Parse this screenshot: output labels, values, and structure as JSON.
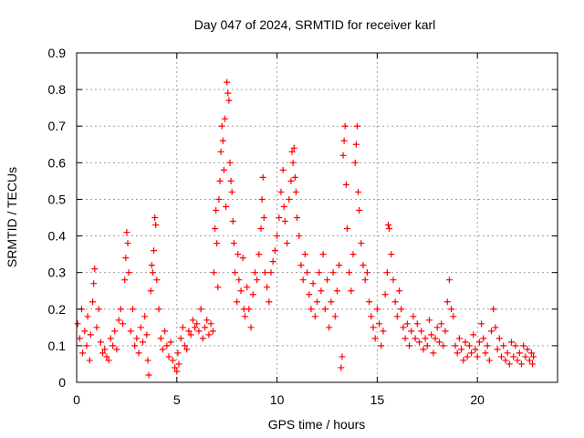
{
  "chart_data": {
    "type": "scatter",
    "title": "Day 047 of 2024, SRMTID for receiver karl",
    "xlabel": "GPS time / hours",
    "ylabel": "SRMTID / TECUs",
    "xlim": [
      0,
      24
    ],
    "ylim": [
      0,
      0.9
    ],
    "xticks": [
      0,
      5,
      10,
      15,
      20
    ],
    "xtick_labels": [
      "0",
      "5",
      "10",
      "15",
      "20"
    ],
    "yticks": [
      0,
      0.1,
      0.2,
      0.3,
      0.4,
      0.5,
      0.6,
      0.7,
      0.8,
      0.9
    ],
    "ytick_labels": [
      "0",
      "0.1",
      "0.2",
      "0.3",
      "0.4",
      "0.5",
      "0.6",
      "0.7",
      "0.8",
      "0.9"
    ],
    "grid": true,
    "marker": "+",
    "color": "#ff0000",
    "series": [
      {
        "name": "SRMTID",
        "points": [
          [
            0.05,
            0.16
          ],
          [
            0.15,
            0.12
          ],
          [
            0.25,
            0.2
          ],
          [
            0.3,
            0.08
          ],
          [
            0.4,
            0.14
          ],
          [
            0.5,
            0.1
          ],
          [
            0.55,
            0.18
          ],
          [
            0.65,
            0.06
          ],
          [
            0.7,
            0.13
          ],
          [
            0.8,
            0.22
          ],
          [
            0.85,
            0.27
          ],
          [
            0.9,
            0.31
          ],
          [
            1.0,
            0.15
          ],
          [
            1.1,
            0.2
          ],
          [
            1.2,
            0.11
          ],
          [
            1.3,
            0.08
          ],
          [
            1.4,
            0.09
          ],
          [
            1.5,
            0.07
          ],
          [
            1.6,
            0.06
          ],
          [
            1.7,
            0.12
          ],
          [
            1.8,
            0.1
          ],
          [
            1.9,
            0.14
          ],
          [
            2.0,
            0.09
          ],
          [
            2.1,
            0.17
          ],
          [
            2.2,
            0.2
          ],
          [
            2.3,
            0.16
          ],
          [
            2.4,
            0.28
          ],
          [
            2.45,
            0.34
          ],
          [
            2.5,
            0.41
          ],
          [
            2.55,
            0.38
          ],
          [
            2.6,
            0.3
          ],
          [
            2.7,
            0.14
          ],
          [
            2.8,
            0.2
          ],
          [
            2.9,
            0.1
          ],
          [
            3.0,
            0.12
          ],
          [
            3.1,
            0.08
          ],
          [
            3.2,
            0.15
          ],
          [
            3.3,
            0.11
          ],
          [
            3.4,
            0.18
          ],
          [
            3.5,
            0.13
          ],
          [
            3.55,
            0.06
          ],
          [
            3.6,
            0.02
          ],
          [
            3.7,
            0.25
          ],
          [
            3.75,
            0.32
          ],
          [
            3.8,
            0.3
          ],
          [
            3.85,
            0.36
          ],
          [
            3.9,
            0.45
          ],
          [
            3.95,
            0.43
          ],
          [
            4.0,
            0.28
          ],
          [
            4.1,
            0.2
          ],
          [
            4.2,
            0.12
          ],
          [
            4.3,
            0.09
          ],
          [
            4.4,
            0.14
          ],
          [
            4.5,
            0.1
          ],
          [
            4.6,
            0.07
          ],
          [
            4.7,
            0.11
          ],
          [
            4.8,
            0.06
          ],
          [
            4.9,
            0.04
          ],
          [
            5.0,
            0.03
          ],
          [
            5.05,
            0.08
          ],
          [
            5.1,
            0.05
          ],
          [
            5.2,
            0.12
          ],
          [
            5.3,
            0.15
          ],
          [
            5.4,
            0.1
          ],
          [
            5.5,
            0.09
          ],
          [
            5.6,
            0.14
          ],
          [
            5.7,
            0.13
          ],
          [
            5.8,
            0.17
          ],
          [
            5.9,
            0.15
          ],
          [
            6.0,
            0.16
          ],
          [
            6.1,
            0.14
          ],
          [
            6.2,
            0.2
          ],
          [
            6.3,
            0.12
          ],
          [
            6.4,
            0.15
          ],
          [
            6.5,
            0.17
          ],
          [
            6.6,
            0.13
          ],
          [
            6.7,
            0.16
          ],
          [
            6.8,
            0.14
          ],
          [
            6.85,
            0.3
          ],
          [
            6.9,
            0.42
          ],
          [
            6.95,
            0.47
          ],
          [
            7.0,
            0.38
          ],
          [
            7.05,
            0.26
          ],
          [
            7.1,
            0.5
          ],
          [
            7.15,
            0.55
          ],
          [
            7.2,
            0.63
          ],
          [
            7.25,
            0.7
          ],
          [
            7.3,
            0.66
          ],
          [
            7.35,
            0.58
          ],
          [
            7.4,
            0.72
          ],
          [
            7.45,
            0.48
          ],
          [
            7.5,
            0.82
          ],
          [
            7.55,
            0.79
          ],
          [
            7.6,
            0.77
          ],
          [
            7.65,
            0.6
          ],
          [
            7.7,
            0.55
          ],
          [
            7.75,
            0.52
          ],
          [
            7.8,
            0.44
          ],
          [
            7.85,
            0.38
          ],
          [
            7.9,
            0.3
          ],
          [
            8.0,
            0.22
          ],
          [
            8.05,
            0.35
          ],
          [
            8.1,
            0.28
          ],
          [
            8.2,
            0.25
          ],
          [
            8.3,
            0.34
          ],
          [
            8.35,
            0.2
          ],
          [
            8.4,
            0.18
          ],
          [
            8.5,
            0.26
          ],
          [
            8.6,
            0.2
          ],
          [
            8.7,
            0.15
          ],
          [
            8.8,
            0.24
          ],
          [
            8.9,
            0.3
          ],
          [
            9.0,
            0.28
          ],
          [
            9.1,
            0.35
          ],
          [
            9.2,
            0.42
          ],
          [
            9.25,
            0.5
          ],
          [
            9.3,
            0.56
          ],
          [
            9.35,
            0.45
          ],
          [
            9.4,
            0.3
          ],
          [
            9.5,
            0.26
          ],
          [
            9.6,
            0.22
          ],
          [
            9.7,
            0.3
          ],
          [
            9.8,
            0.33
          ],
          [
            9.9,
            0.36
          ],
          [
            10.0,
            0.4
          ],
          [
            10.1,
            0.45
          ],
          [
            10.2,
            0.52
          ],
          [
            10.3,
            0.58
          ],
          [
            10.35,
            0.48
          ],
          [
            10.4,
            0.44
          ],
          [
            10.5,
            0.38
          ],
          [
            10.6,
            0.5
          ],
          [
            10.7,
            0.55
          ],
          [
            10.75,
            0.63
          ],
          [
            10.8,
            0.6
          ],
          [
            10.85,
            0.64
          ],
          [
            10.9,
            0.56
          ],
          [
            10.95,
            0.52
          ],
          [
            11.0,
            0.45
          ],
          [
            11.1,
            0.4
          ],
          [
            11.2,
            0.32
          ],
          [
            11.3,
            0.28
          ],
          [
            11.4,
            0.35
          ],
          [
            11.5,
            0.3
          ],
          [
            11.6,
            0.24
          ],
          [
            11.7,
            0.2
          ],
          [
            11.8,
            0.27
          ],
          [
            11.9,
            0.18
          ],
          [
            12.0,
            0.22
          ],
          [
            12.1,
            0.3
          ],
          [
            12.2,
            0.25
          ],
          [
            12.3,
            0.35
          ],
          [
            12.4,
            0.2
          ],
          [
            12.5,
            0.28
          ],
          [
            12.6,
            0.15
          ],
          [
            12.7,
            0.22
          ],
          [
            12.8,
            0.3
          ],
          [
            12.9,
            0.18
          ],
          [
            13.0,
            0.25
          ],
          [
            13.1,
            0.32
          ],
          [
            13.2,
            0.04
          ],
          [
            13.25,
            0.07
          ],
          [
            13.3,
            0.62
          ],
          [
            13.35,
            0.66
          ],
          [
            13.4,
            0.7
          ],
          [
            13.45,
            0.54
          ],
          [
            13.5,
            0.42
          ],
          [
            13.6,
            0.3
          ],
          [
            13.7,
            0.25
          ],
          [
            13.8,
            0.35
          ],
          [
            13.9,
            0.6
          ],
          [
            13.95,
            0.65
          ],
          [
            14.0,
            0.7
          ],
          [
            14.05,
            0.52
          ],
          [
            14.1,
            0.47
          ],
          [
            14.2,
            0.38
          ],
          [
            14.3,
            0.32
          ],
          [
            14.4,
            0.28
          ],
          [
            14.5,
            0.3
          ],
          [
            14.6,
            0.22
          ],
          [
            14.7,
            0.18
          ],
          [
            14.8,
            0.15
          ],
          [
            14.9,
            0.12
          ],
          [
            15.0,
            0.2
          ],
          [
            15.1,
            0.16
          ],
          [
            15.2,
            0.1
          ],
          [
            15.3,
            0.14
          ],
          [
            15.4,
            0.24
          ],
          [
            15.5,
            0.3
          ],
          [
            15.55,
            0.43
          ],
          [
            15.6,
            0.42
          ],
          [
            15.7,
            0.35
          ],
          [
            15.8,
            0.28
          ],
          [
            15.9,
            0.22
          ],
          [
            16.0,
            0.18
          ],
          [
            16.1,
            0.25
          ],
          [
            16.2,
            0.2
          ],
          [
            16.3,
            0.15
          ],
          [
            16.4,
            0.12
          ],
          [
            16.5,
            0.16
          ],
          [
            16.6,
            0.1
          ],
          [
            16.7,
            0.14
          ],
          [
            16.8,
            0.18
          ],
          [
            16.9,
            0.12
          ],
          [
            17.0,
            0.16
          ],
          [
            17.1,
            0.11
          ],
          [
            17.2,
            0.14
          ],
          [
            17.3,
            0.09
          ],
          [
            17.4,
            0.12
          ],
          [
            17.5,
            0.1
          ],
          [
            17.6,
            0.17
          ],
          [
            17.7,
            0.13
          ],
          [
            17.8,
            0.08
          ],
          [
            17.9,
            0.12
          ],
          [
            18.0,
            0.15
          ],
          [
            18.1,
            0.11
          ],
          [
            18.2,
            0.16
          ],
          [
            18.3,
            0.1
          ],
          [
            18.4,
            0.14
          ],
          [
            18.5,
            0.22
          ],
          [
            18.6,
            0.28
          ],
          [
            18.7,
            0.2
          ],
          [
            18.8,
            0.18
          ],
          [
            18.9,
            0.1
          ],
          [
            19.0,
            0.08
          ],
          [
            19.1,
            0.12
          ],
          [
            19.2,
            0.09
          ],
          [
            19.3,
            0.06
          ],
          [
            19.4,
            0.11
          ],
          [
            19.5,
            0.07
          ],
          [
            19.6,
            0.1
          ],
          [
            19.7,
            0.08
          ],
          [
            19.8,
            0.13
          ],
          [
            19.9,
            0.09
          ],
          [
            20.0,
            0.07
          ],
          [
            20.1,
            0.11
          ],
          [
            20.2,
            0.16
          ],
          [
            20.3,
            0.12
          ],
          [
            20.4,
            0.08
          ],
          [
            20.5,
            0.1
          ],
          [
            20.6,
            0.06
          ],
          [
            20.7,
            0.14
          ],
          [
            20.8,
            0.2
          ],
          [
            20.9,
            0.15
          ],
          [
            21.0,
            0.09
          ],
          [
            21.1,
            0.12
          ],
          [
            21.2,
            0.07
          ],
          [
            21.3,
            0.1
          ],
          [
            21.4,
            0.06
          ],
          [
            21.5,
            0.08
          ],
          [
            21.6,
            0.05
          ],
          [
            21.7,
            0.11
          ],
          [
            21.8,
            0.07
          ],
          [
            21.9,
            0.1
          ],
          [
            22.0,
            0.06
          ],
          [
            22.1,
            0.08
          ],
          [
            22.2,
            0.05
          ],
          [
            22.3,
            0.1
          ],
          [
            22.4,
            0.07
          ],
          [
            22.5,
            0.09
          ],
          [
            22.6,
            0.06
          ],
          [
            22.7,
            0.08
          ],
          [
            22.75,
            0.05
          ],
          [
            22.8,
            0.07
          ]
        ]
      }
    ]
  }
}
